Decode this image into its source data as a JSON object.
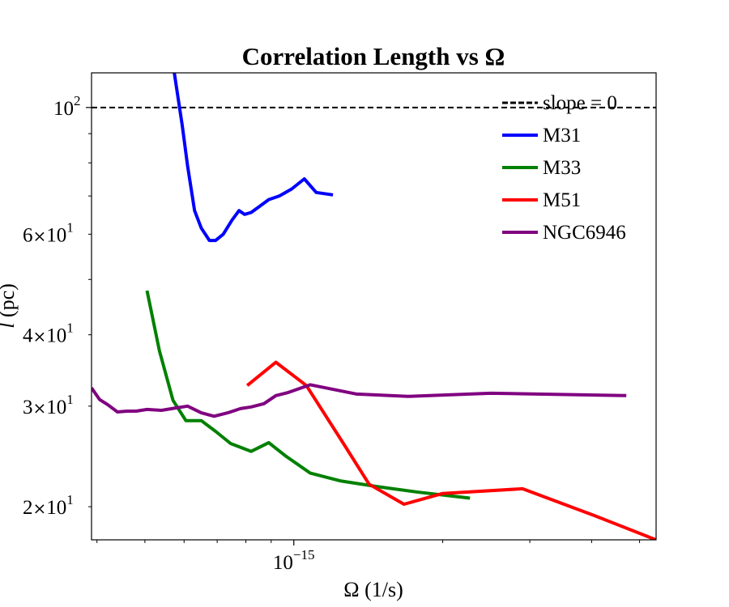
{
  "chart_data": {
    "type": "line",
    "title": "Correlation Length vs Ω",
    "xlabel": "Ω (1/s)",
    "ylabel_italic": "l",
    "ylabel_unit": " (pc)",
    "xscale": "log",
    "yscale": "log",
    "xlim": [
      3.9e-16,
      5.4e-15
    ],
    "ylim": [
      17.5,
      115
    ],
    "grid": false,
    "legend_position": "top-right",
    "x_major_ticks": [
      {
        "value": 1e-15,
        "base": "10",
        "exp": "−15"
      }
    ],
    "x_minor_ticks": [
      4e-16,
      5e-16,
      6e-16,
      7e-16,
      8e-16,
      9e-16,
      2e-15,
      3e-15,
      4e-15,
      5e-15
    ],
    "y_major_ticks": [
      {
        "value": 100,
        "base": "10",
        "exp": "2"
      }
    ],
    "y_minor_ticks": [
      {
        "value": 20,
        "mantissa": "2",
        "times": "×",
        "base": "10",
        "exp": "1"
      },
      {
        "value": 30,
        "mantissa": "3",
        "times": "×",
        "base": "10",
        "exp": "1"
      },
      {
        "value": 40,
        "mantissa": "4",
        "times": "×",
        "base": "10",
        "exp": "1"
      },
      {
        "value": 60,
        "mantissa": "6",
        "times": "×",
        "base": "10",
        "exp": "1"
      }
    ],
    "y_unlabeled_minor_ticks": [
      50,
      70,
      80,
      90
    ],
    "reference_line": {
      "name": "slope = 0",
      "y": 100,
      "color": "#000000",
      "style": "dashed"
    },
    "series": [
      {
        "name": "M31",
        "color": "#0000ff",
        "points": [
          [
            5.7e-16,
            119
          ],
          [
            5.95e-16,
            93
          ],
          [
            6.1e-16,
            79
          ],
          [
            6.3e-16,
            66
          ],
          [
            6.5e-16,
            61.5
          ],
          [
            6.75e-16,
            58.5
          ],
          [
            6.95e-16,
            58.5
          ],
          [
            7.2e-16,
            60
          ],
          [
            7.5e-16,
            63.5
          ],
          [
            7.75e-16,
            66
          ],
          [
            7.95e-16,
            65
          ],
          [
            8.2e-16,
            65.5
          ],
          [
            8.5e-16,
            67
          ],
          [
            8.9e-16,
            69
          ],
          [
            9.35e-16,
            70
          ],
          [
            9.9e-16,
            72
          ],
          [
            1.05e-15,
            75
          ],
          [
            1.11e-15,
            71
          ],
          [
            1.2e-15,
            70.3
          ]
        ]
      },
      {
        "name": "M33",
        "color": "#008000",
        "points": [
          [
            5.05e-16,
            47.8
          ],
          [
            5.35e-16,
            37.5
          ],
          [
            5.7e-16,
            30.7
          ],
          [
            6.05e-16,
            28.3
          ],
          [
            6.5e-16,
            28.3
          ],
          [
            6.95e-16,
            27.1
          ],
          [
            7.45e-16,
            25.8
          ],
          [
            8.2e-16,
            25
          ],
          [
            8.9e-16,
            25.9
          ],
          [
            9.65e-16,
            24.5
          ],
          [
            1.08e-15,
            22.9
          ],
          [
            1.24e-15,
            22.2
          ],
          [
            1.47e-15,
            21.7
          ],
          [
            1.79e-15,
            21.2
          ],
          [
            2.27e-15,
            20.7
          ]
        ]
      },
      {
        "name": "M51",
        "color": "#ff0000",
        "points": [
          [
            8.05e-16,
            32.6
          ],
          [
            9.2e-16,
            35.8
          ],
          [
            1.06e-15,
            32.6
          ],
          [
            1.26e-15,
            25.8
          ],
          [
            1.42e-15,
            21.9
          ],
          [
            1.67e-15,
            20.2
          ],
          [
            2e-15,
            21.1
          ],
          [
            2.9e-15,
            21.5
          ],
          [
            4.05e-15,
            19.3
          ],
          [
            5.4e-15,
            17.5
          ]
        ]
      },
      {
        "name": "NGC6946",
        "color": "#800080",
        "points": [
          [
            3.9e-16,
            32.3
          ],
          [
            4.05e-16,
            30.8
          ],
          [
            4.2e-16,
            30.2
          ],
          [
            4.4e-16,
            29.3
          ],
          [
            4.6e-16,
            29.4
          ],
          [
            4.8e-16,
            29.4
          ],
          [
            5.05e-16,
            29.6
          ],
          [
            5.4e-16,
            29.5
          ],
          [
            5.8e-16,
            29.8
          ],
          [
            6.1e-16,
            30.0
          ],
          [
            6.5e-16,
            29.2
          ],
          [
            6.9e-16,
            28.8
          ],
          [
            7.35e-16,
            29.2
          ],
          [
            7.8e-16,
            29.7
          ],
          [
            8.2e-16,
            29.9
          ],
          [
            8.7e-16,
            30.3
          ],
          [
            9.2e-16,
            31.3
          ],
          [
            9.75e-16,
            31.7
          ],
          [
            1.08e-15,
            32.7
          ],
          [
            1.2e-15,
            32.1
          ],
          [
            1.34e-15,
            31.5
          ],
          [
            1.7e-15,
            31.2
          ],
          [
            2.5e-15,
            31.6
          ],
          [
            4.7e-15,
            31.3
          ]
        ]
      }
    ]
  }
}
